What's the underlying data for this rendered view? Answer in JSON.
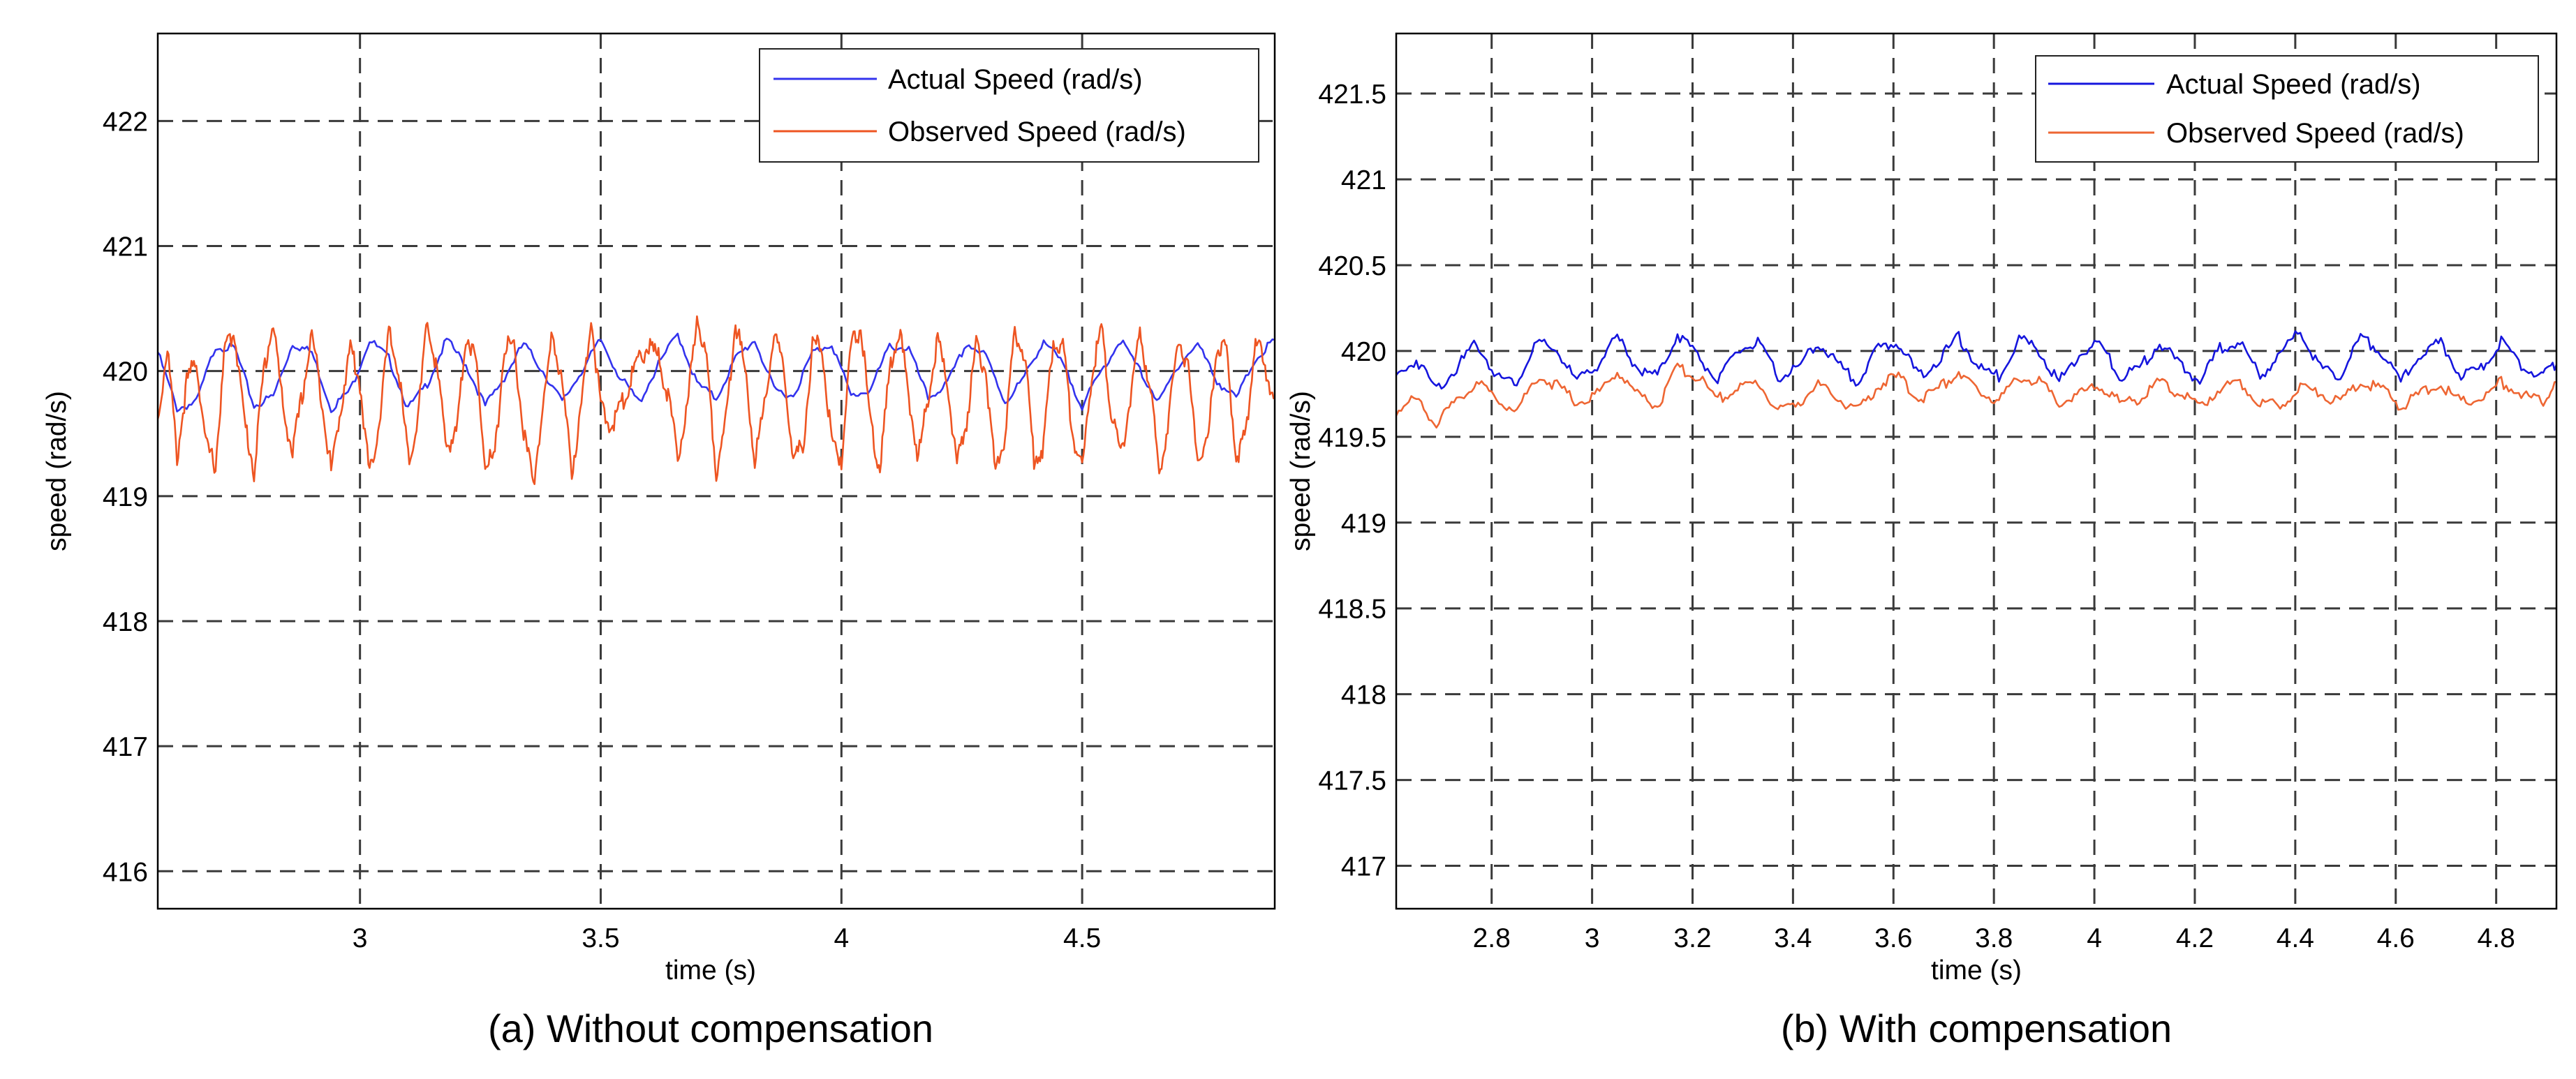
{
  "chart_data": [
    {
      "type": "line",
      "caption": "(a) Without compensation",
      "xlabel": "time (s)",
      "ylabel": "speed (rad/s)",
      "xlim": [
        2.58,
        4.9
      ],
      "ylim": [
        415.7,
        422.7
      ],
      "grid": true,
      "legend_position": "top-right",
      "x_ticks": [
        3,
        3.5,
        4,
        4.5
      ],
      "x_tick_labels": [
        "3",
        "3.5",
        "4",
        "4.5"
      ],
      "y_ticks": [
        416,
        417,
        418,
        419,
        420,
        421,
        422
      ],
      "y_tick_labels": [
        "416",
        "417",
        "418",
        "419",
        "420",
        "421",
        "422"
      ],
      "series": [
        {
          "name": "Actual Speed (rad/s)",
          "color": "#3333ee",
          "x": [
            2.58,
            2.62,
            2.66,
            2.7,
            2.74,
            2.78,
            2.82,
            2.86,
            2.9,
            2.94,
            2.98,
            3.02,
            3.06,
            3.1,
            3.14,
            3.18,
            3.22,
            3.26,
            3.3,
            3.34,
            3.38,
            3.42,
            3.46,
            3.5,
            3.54,
            3.58,
            3.62,
            3.66,
            3.7,
            3.74,
            3.78,
            3.82,
            3.86,
            3.9,
            3.94,
            3.98,
            4.02,
            4.06,
            4.1,
            4.14,
            4.18,
            4.22,
            4.26,
            4.3,
            4.34,
            4.38,
            4.42,
            4.46,
            4.5,
            4.54,
            4.58,
            4.62,
            4.66,
            4.7,
            4.74,
            4.78,
            4.82,
            4.86,
            4.9
          ],
          "values": [
            420.15,
            419.7,
            419.75,
            420.2,
            420.18,
            419.72,
            419.8,
            420.22,
            420.15,
            419.7,
            419.85,
            420.25,
            420.1,
            419.7,
            419.9,
            420.25,
            420.05,
            419.72,
            419.95,
            420.22,
            420.0,
            419.75,
            420.0,
            420.25,
            419.95,
            419.75,
            420.05,
            420.3,
            419.9,
            419.78,
            420.1,
            420.25,
            419.85,
            419.8,
            420.15,
            420.22,
            419.8,
            419.85,
            420.2,
            420.18,
            419.78,
            419.9,
            420.22,
            420.12,
            419.75,
            419.95,
            420.25,
            420.05,
            419.72,
            420.0,
            420.25,
            420.0,
            419.75,
            420.05,
            420.22,
            419.92,
            419.78,
            420.1,
            420.25
          ]
        },
        {
          "name": "Observed Speed (rad/s)",
          "color": "#ee5522",
          "x": [
            2.58,
            2.6,
            2.62,
            2.64,
            2.66,
            2.68,
            2.7,
            2.72,
            2.74,
            2.76,
            2.78,
            2.8,
            2.82,
            2.84,
            2.86,
            2.88,
            2.9,
            2.92,
            2.94,
            2.96,
            2.98,
            3.0,
            3.02,
            3.04,
            3.06,
            3.08,
            3.1,
            3.12,
            3.14,
            3.16,
            3.18,
            3.2,
            3.22,
            3.24,
            3.26,
            3.28,
            3.3,
            3.32,
            3.34,
            3.36,
            3.38,
            3.4,
            3.42,
            3.44,
            3.46,
            3.48,
            3.5,
            3.52,
            3.54,
            3.56,
            3.58,
            3.6,
            3.62,
            3.64,
            3.66,
            3.68,
            3.7,
            3.72,
            3.74,
            3.76,
            3.78,
            3.8,
            3.82,
            3.84,
            3.86,
            3.88,
            3.9,
            3.92,
            3.94,
            3.96,
            3.98,
            4.0,
            4.02,
            4.04,
            4.06,
            4.08,
            4.1,
            4.12,
            4.14,
            4.16,
            4.18,
            4.2,
            4.22,
            4.24,
            4.26,
            4.28,
            4.3,
            4.32,
            4.34,
            4.36,
            4.38,
            4.4,
            4.42,
            4.44,
            4.46,
            4.48,
            4.5,
            4.52,
            4.54,
            4.56,
            4.58,
            4.6,
            4.62,
            4.64,
            4.66,
            4.68,
            4.7,
            4.72,
            4.74,
            4.76,
            4.78,
            4.8,
            4.82,
            4.84,
            4.86,
            4.88,
            4.9
          ],
          "values": [
            419.6,
            420.2,
            419.3,
            419.9,
            420.1,
            419.4,
            419.25,
            420.2,
            420.3,
            419.6,
            419.2,
            420.0,
            420.4,
            419.7,
            419.35,
            419.8,
            420.3,
            419.8,
            419.2,
            419.7,
            420.2,
            419.9,
            419.15,
            419.6,
            420.3,
            420.0,
            419.3,
            419.6,
            420.4,
            420.0,
            419.4,
            419.5,
            420.3,
            420.1,
            419.3,
            419.3,
            420.2,
            420.2,
            419.5,
            419.1,
            419.7,
            420.3,
            419.9,
            419.2,
            419.7,
            420.45,
            419.7,
            419.55,
            419.7,
            419.9,
            420.1,
            420.2,
            420.1,
            419.8,
            419.3,
            419.7,
            420.45,
            420.1,
            419.2,
            419.6,
            420.4,
            420.0,
            419.3,
            419.7,
            420.3,
            420.0,
            419.3,
            419.4,
            420.2,
            420.2,
            419.4,
            419.3,
            420.2,
            420.35,
            419.6,
            419.2,
            420.0,
            420.35,
            419.8,
            419.3,
            419.8,
            420.25,
            419.9,
            419.25,
            419.6,
            420.2,
            420.0,
            419.15,
            419.5,
            420.3,
            420.15,
            419.3,
            419.4,
            420.25,
            420.2,
            419.5,
            419.2,
            420.0,
            420.35,
            419.7,
            419.3,
            419.8,
            420.3,
            419.9,
            419.2,
            419.6,
            420.3,
            420.0,
            419.3,
            419.4,
            420.2,
            420.15,
            419.3,
            419.5,
            420.3,
            420.0,
            419.8
          ]
        }
      ]
    },
    {
      "type": "line",
      "caption": "(b) With compensation",
      "xlabel": "time (s)",
      "ylabel": "speed (rad/s)",
      "xlim": [
        2.61,
        4.92
      ],
      "ylim": [
        416.75,
        421.85
      ],
      "grid": true,
      "legend_position": "top-right",
      "x_ticks": [
        2.8,
        3.0,
        3.2,
        3.4,
        3.6,
        3.8,
        4.0,
        4.2,
        4.4,
        4.6,
        4.8
      ],
      "x_tick_labels": [
        "2.8",
        "3",
        "3.2",
        "3.4",
        "3.6",
        "3.8",
        "4",
        "4.2",
        "4.4",
        "4.6",
        "4.8"
      ],
      "y_ticks": [
        417,
        417.5,
        418,
        418.5,
        419,
        419.5,
        420,
        420.5,
        421,
        421.5
      ],
      "y_tick_labels": [
        "417",
        "417.5",
        "418",
        "418.5",
        "419",
        "419.5",
        "420",
        "420.5",
        "421",
        "421.5"
      ],
      "series": [
        {
          "name": "Actual Speed (rad/s)",
          "color": "#1515dd",
          "x": [
            2.61,
            2.65,
            2.69,
            2.73,
            2.77,
            2.81,
            2.85,
            2.89,
            2.93,
            2.97,
            3.01,
            3.05,
            3.09,
            3.13,
            3.17,
            3.21,
            3.25,
            3.29,
            3.33,
            3.37,
            3.41,
            3.45,
            3.49,
            3.53,
            3.57,
            3.61,
            3.65,
            3.69,
            3.73,
            3.77,
            3.81,
            3.85,
            3.89,
            3.93,
            3.97,
            4.01,
            4.05,
            4.09,
            4.13,
            4.17,
            4.21,
            4.25,
            4.29,
            4.33,
            4.37,
            4.41,
            4.45,
            4.49,
            4.53,
            4.57,
            4.61,
            4.65,
            4.69,
            4.73,
            4.77,
            4.81,
            4.85,
            4.89,
            4.92
          ],
          "values": [
            419.85,
            419.95,
            419.78,
            419.9,
            420.05,
            419.85,
            419.82,
            420.05,
            420.0,
            419.82,
            419.92,
            420.08,
            419.9,
            419.85,
            420.1,
            419.98,
            419.82,
            420.0,
            420.05,
            419.85,
            419.9,
            420.05,
            419.92,
            419.82,
            420.02,
            420.05,
            419.85,
            419.95,
            420.08,
            419.9,
            419.85,
            420.08,
            420.0,
            419.82,
            419.98,
            420.05,
            419.85,
            419.9,
            420.05,
            419.92,
            419.82,
            420.02,
            420.05,
            419.85,
            419.98,
            420.12,
            419.9,
            419.85,
            420.08,
            420.0,
            419.82,
            419.98,
            420.05,
            419.85,
            419.9,
            420.05,
            419.92,
            419.85,
            419.92
          ]
        },
        {
          "name": "Observed Speed (rad/s)",
          "color": "#ee6633",
          "x": [
            2.61,
            2.65,
            2.69,
            2.73,
            2.77,
            2.81,
            2.85,
            2.89,
            2.93,
            2.97,
            3.01,
            3.05,
            3.09,
            3.13,
            3.17,
            3.21,
            3.25,
            3.29,
            3.33,
            3.37,
            3.41,
            3.45,
            3.49,
            3.53,
            3.57,
            3.61,
            3.65,
            3.69,
            3.73,
            3.77,
            3.81,
            3.85,
            3.89,
            3.93,
            3.97,
            4.01,
            4.05,
            4.09,
            4.13,
            4.17,
            4.21,
            4.25,
            4.29,
            4.33,
            4.37,
            4.41,
            4.45,
            4.49,
            4.53,
            4.57,
            4.61,
            4.65,
            4.69,
            4.73,
            4.77,
            4.81,
            4.85,
            4.89,
            4.92
          ],
          "values": [
            419.65,
            419.72,
            419.58,
            419.7,
            419.82,
            419.72,
            419.65,
            419.85,
            419.8,
            419.7,
            419.75,
            419.88,
            419.75,
            419.68,
            419.9,
            419.85,
            419.72,
            419.78,
            419.82,
            419.65,
            419.7,
            419.8,
            419.72,
            419.65,
            419.8,
            419.85,
            419.72,
            419.78,
            419.88,
            419.75,
            419.72,
            419.85,
            419.82,
            419.7,
            419.75,
            419.8,
            419.7,
            419.72,
            419.82,
            419.75,
            419.68,
            419.78,
            419.82,
            419.7,
            419.68,
            419.8,
            419.75,
            419.7,
            419.82,
            419.78,
            419.68,
            419.75,
            419.8,
            419.7,
            419.72,
            419.82,
            419.75,
            419.7,
            419.82
          ]
        }
      ]
    }
  ]
}
